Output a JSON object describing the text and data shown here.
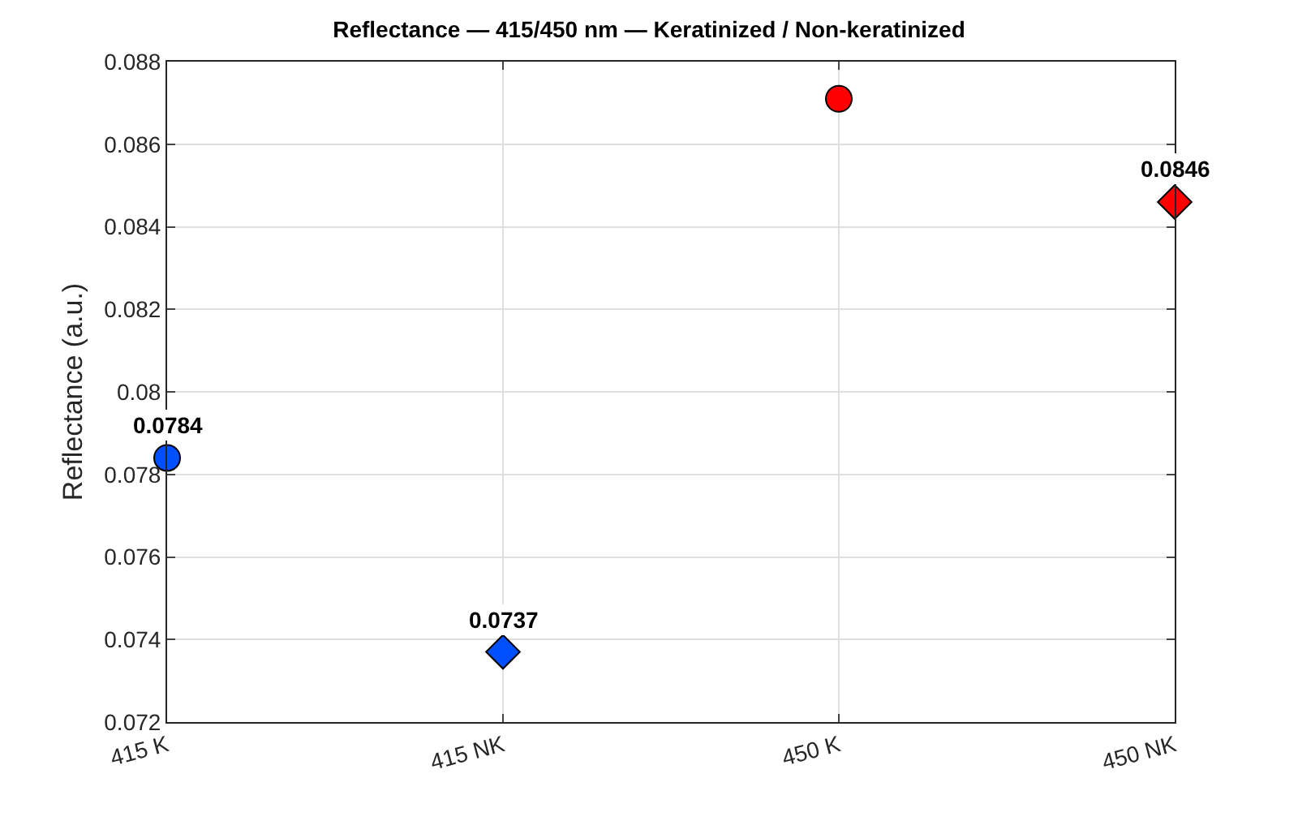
{
  "chart_data": {
    "type": "scatter",
    "title": "Reflectance — 415/450 nm — Keratinized / Non-keratinized",
    "ylabel": "Reflectance (a.u.)",
    "categories": [
      "415 K",
      "415 NK",
      "450 K",
      "450 NK"
    ],
    "series": [
      {
        "marker": "circle",
        "colors": [
          "#0050ff",
          null,
          "#ff0000",
          null
        ],
        "values": [
          0.0784,
          null,
          0.0871,
          null
        ],
        "value_labels": [
          "0.0784",
          null,
          null,
          null
        ]
      },
      {
        "marker": "diamond",
        "colors": [
          null,
          "#0050ff",
          null,
          "#ff0000"
        ],
        "values": [
          null,
          0.0737,
          null,
          0.0846
        ],
        "value_labels": [
          null,
          "0.0737",
          null,
          "0.0846"
        ]
      }
    ],
    "ylim": [
      0.072,
      0.088
    ],
    "yticks": [
      0.072,
      0.074,
      0.076,
      0.078,
      0.08,
      0.082,
      0.084,
      0.086,
      0.088
    ],
    "grid": true
  }
}
